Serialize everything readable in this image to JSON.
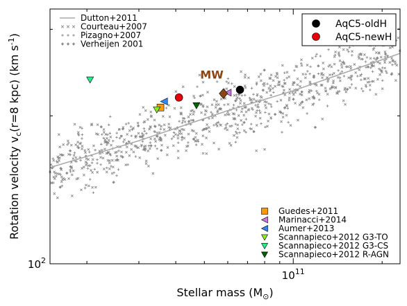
{
  "chart_data": {
    "type": "scatter",
    "title": "",
    "xlabel": "Stellar mass (M",
    "xlabel_sub": "⊙",
    "xlabel_close": ")",
    "ylabel": "Rotation velocity v",
    "ylabel_sub": "c",
    "ylabel_mid": "(r=8 kpc)  (km s",
    "ylabel_sup": "-1",
    "ylabel_close": ")",
    "xscale": "log",
    "yscale": "log",
    "xlim": [
      15000000000.0,
      230000000000.0
    ],
    "ylim": [
      100,
      330
    ],
    "x_ticks": [
      {
        "value": 100000000000.0,
        "label": "10",
        "exp": "11"
      }
    ],
    "y_ticks": [
      {
        "value": 100,
        "label": "10",
        "exp": "2"
      }
    ],
    "grid": false,
    "background_relation": {
      "name": "Dutton+2011",
      "type": "line",
      "color": "#aaaaaa",
      "points": [
        [
          15000000000.0,
          157
        ],
        [
          30000000000.0,
          178
        ],
        [
          60000000000.0,
          205
        ],
        [
          100000000000.0,
          225
        ],
        [
          150000000000.0,
          245
        ],
        [
          230000000000.0,
          268
        ]
      ]
    },
    "background_samples": [
      {
        "name": "Courteau+2007",
        "marker": "x",
        "color": "#7f7f7f"
      },
      {
        "name": "Pizagno+2007",
        "marker": "+",
        "color": "#7f7f7f"
      },
      {
        "name": "Verheijen 2001",
        "marker": "diamond",
        "color": "#7f7f7f"
      }
    ],
    "simulations": [
      {
        "name": "AqC5-oldH",
        "marker": "circle",
        "color": "#000000",
        "x": 66000000000.0,
        "y": 226
      },
      {
        "name": "AqC5-newH",
        "marker": "circle",
        "color": "#e8000b",
        "x": 41000000000.0,
        "y": 218
      }
    ],
    "milky_way": {
      "label": "MW",
      "marker": "diamond",
      "color": "#8b4513",
      "x": 58000000000.0,
      "y": 222,
      "label_x": 53000000000.0,
      "label_y": 238
    },
    "observations": [
      {
        "name": "Guedes+2011",
        "marker": "square",
        "color": "#ff9900",
        "x": 35500000000.0,
        "y": 208
      },
      {
        "name": "Marinacci+2014",
        "marker": "triangle-left",
        "color": "#cc77dd",
        "x": 60000000000.0,
        "y": 223
      },
      {
        "name": "Aumer+2013",
        "marker": "triangle-left",
        "color": "#3388ee",
        "x": 36500000000.0,
        "y": 214
      },
      {
        "name": "Scannapieco+2012 G3-TO",
        "marker": "triangle-down",
        "color": "#88ee22",
        "x": 34500000000.0,
        "y": 206
      },
      {
        "name": "Scannapieco+2012 G3-CS",
        "marker": "triangle-down",
        "color": "#22ee88",
        "x": 20500000000.0,
        "y": 237
      },
      {
        "name": "Scannapieco+2012 R-AGN",
        "marker": "triangle-down",
        "color": "#006600",
        "x": 47000000000.0,
        "y": 210
      }
    ],
    "legends": {
      "top_left": [
        "Dutton+2011",
        "Courteau+2007",
        "Pizagno+2007",
        "Verheijen 2001"
      ],
      "top_right": [
        "AqC5-oldH",
        "AqC5-newH"
      ],
      "bottom_right": [
        "Guedes+2011",
        "Marinacci+2014",
        "Aumer+2013",
        "Scannapieco+2012 G3-TO",
        "Scannapieco+2012 G3-CS",
        "Scannapieco+2012 R-AGN"
      ]
    }
  }
}
